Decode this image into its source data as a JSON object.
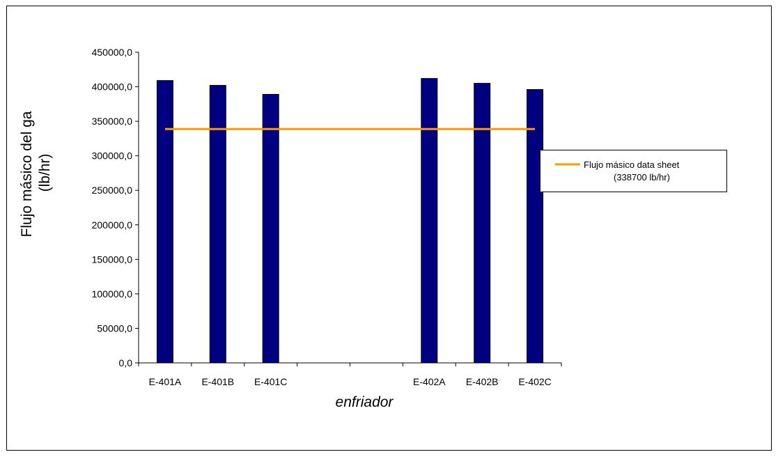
{
  "chart_data": {
    "type": "bar",
    "title": "",
    "xlabel": "enfriador",
    "ylabel_lines": [
      "Flujo másico del ga",
      "(lb/hr)"
    ],
    "categories": [
      "E-401A",
      "E-401B",
      "E-401C",
      "",
      "",
      "E-402A",
      "E-402B",
      "E-402C"
    ],
    "series": [
      {
        "values": [
          409000,
          402000,
          389000,
          null,
          null,
          412000,
          405000,
          396000
        ],
        "color": "#000080"
      }
    ],
    "reference_line": {
      "name_lines": [
        "Flujo másico data sheet",
        "(338700 lb/hr)"
      ],
      "value": 338700,
      "color": "#FF9900"
    },
    "ylim": [
      0,
      450000
    ],
    "ytick_step": 50000,
    "ytick_labels": [
      "0,0",
      "50000,0",
      "100000,0",
      "150000,0",
      "200000,0",
      "250000,0",
      "300000,0",
      "350000,0",
      "400000,0",
      "450000,0"
    ],
    "grid": false,
    "legend_position": "right"
  }
}
